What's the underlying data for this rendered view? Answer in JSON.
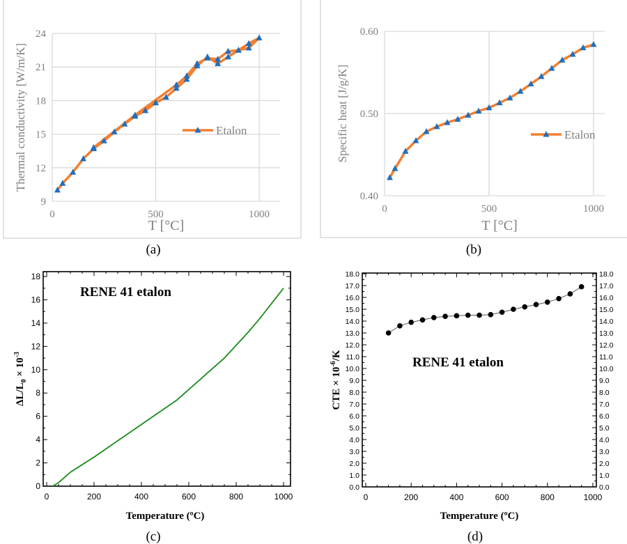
{
  "chart_data": [
    {
      "panel_label": "(a)",
      "type": "line",
      "xlabel": "T [°C]",
      "ylabel": "Thermal conductivity [W/m/K]",
      "xlim": [
        0,
        1100
      ],
      "ylim": [
        9,
        24
      ],
      "xticks": [
        0,
        500,
        1000
      ],
      "yticks": [
        9,
        12,
        15,
        18,
        21,
        24
      ],
      "grid": true,
      "legend_position": "center-right",
      "line_color": "#f47f2f",
      "marker_color": "#1f6fbf",
      "marker": "triangle",
      "series": [
        {
          "name": "Etalon",
          "x": [
            25,
            50,
            100,
            150,
            200,
            250,
            300,
            350,
            400,
            450,
            500,
            550,
            600,
            650,
            700,
            750,
            800,
            850,
            900,
            950,
            1000,
            950,
            900,
            850,
            800,
            750,
            700,
            650,
            600,
            400,
            200
          ],
          "y": [
            10.0,
            10.6,
            11.6,
            12.8,
            13.7,
            14.4,
            15.2,
            15.9,
            16.6,
            17.1,
            17.8,
            18.3,
            19.1,
            19.9,
            21.1,
            21.9,
            21.3,
            21.9,
            22.5,
            22.7,
            23.6,
            23.1,
            22.5,
            22.4,
            21.7,
            21.8,
            21.3,
            20.2,
            19.4,
            16.7,
            13.8
          ]
        }
      ]
    },
    {
      "panel_label": "(b)",
      "type": "line",
      "xlabel": "T [°C]",
      "ylabel": "Specific heat [J/g/K]",
      "xlim": [
        0,
        1050
      ],
      "ylim": [
        0.4,
        0.6
      ],
      "xticks": [
        0,
        500,
        1000
      ],
      "yticks": [
        "0.40",
        "0.50",
        "0.60"
      ],
      "grid": true,
      "legend_position": "center-right",
      "line_color": "#f47f2f",
      "marker_color": "#1f6fbf",
      "marker": "triangle",
      "series": [
        {
          "name": "Etalon",
          "x": [
            25,
            50,
            100,
            150,
            200,
            250,
            300,
            350,
            400,
            450,
            500,
            550,
            600,
            650,
            700,
            750,
            800,
            850,
            900,
            950,
            1000
          ],
          "y": [
            0.422,
            0.433,
            0.454,
            0.467,
            0.478,
            0.484,
            0.489,
            0.493,
            0.498,
            0.503,
            0.507,
            0.513,
            0.519,
            0.527,
            0.536,
            0.545,
            0.555,
            0.565,
            0.572,
            0.58,
            0.584
          ]
        }
      ]
    },
    {
      "panel_label": "(c)",
      "type": "line",
      "annotation": "RENE 41 etalon",
      "xlabel": "Temperature (ºC)",
      "ylabel_main": "ΔL/L",
      "ylabel_sub": "0",
      "ylabel_tail": " × 10",
      "ylabel_sup": "-3",
      "xlim": [
        0,
        1000
      ],
      "ylim": [
        0,
        18
      ],
      "xticks": [
        0,
        200,
        400,
        600,
        800,
        1000
      ],
      "yticks": [
        0,
        2,
        4,
        6,
        8,
        10,
        12,
        14,
        16,
        18
      ],
      "grid": false,
      "line_color": "#1a8a1a",
      "series": [
        {
          "x": [
            25,
            50,
            100,
            150,
            200,
            250,
            300,
            350,
            400,
            450,
            500,
            550,
            600,
            650,
            700,
            750,
            800,
            850,
            900,
            950,
            1000
          ],
          "y": [
            0,
            0.3,
            1.2,
            1.85,
            2.5,
            3.2,
            3.9,
            4.6,
            5.3,
            6.0,
            6.7,
            7.4,
            8.3,
            9.2,
            10.1,
            11.0,
            12.1,
            13.2,
            14.4,
            15.7,
            17.0
          ]
        }
      ]
    },
    {
      "panel_label": "(d)",
      "type": "line",
      "annotation": "RENE 41 etalon",
      "xlabel": "Temperature (ºC)",
      "ylabel_main": "CTE × 10",
      "ylabel_sup": "-6",
      "ylabel_tail": "/K",
      "xlim": [
        0,
        1000
      ],
      "ylim": [
        0,
        18
      ],
      "xticks": [
        0,
        200,
        400,
        600,
        800,
        1000
      ],
      "yticks": [
        "0.0",
        "1.0",
        "2.0",
        "3.0",
        "4.0",
        "5.0",
        "6.0",
        "7.0",
        "8.0",
        "9.0",
        "10.0",
        "11.0",
        "12.0",
        "13.0",
        "14.0",
        "15.0",
        "16.0",
        "17.0",
        "18.0"
      ],
      "grid": false,
      "line_color": "#555555",
      "marker_color": "#000000",
      "marker": "circle",
      "series": [
        {
          "x": [
            100,
            150,
            200,
            250,
            300,
            350,
            400,
            450,
            500,
            550,
            600,
            650,
            700,
            750,
            800,
            850,
            900,
            950
          ],
          "y": [
            13.0,
            13.6,
            13.9,
            14.1,
            14.3,
            14.4,
            14.45,
            14.5,
            14.5,
            14.55,
            14.75,
            15.0,
            15.2,
            15.4,
            15.6,
            15.9,
            16.3,
            16.9
          ]
        }
      ]
    }
  ]
}
